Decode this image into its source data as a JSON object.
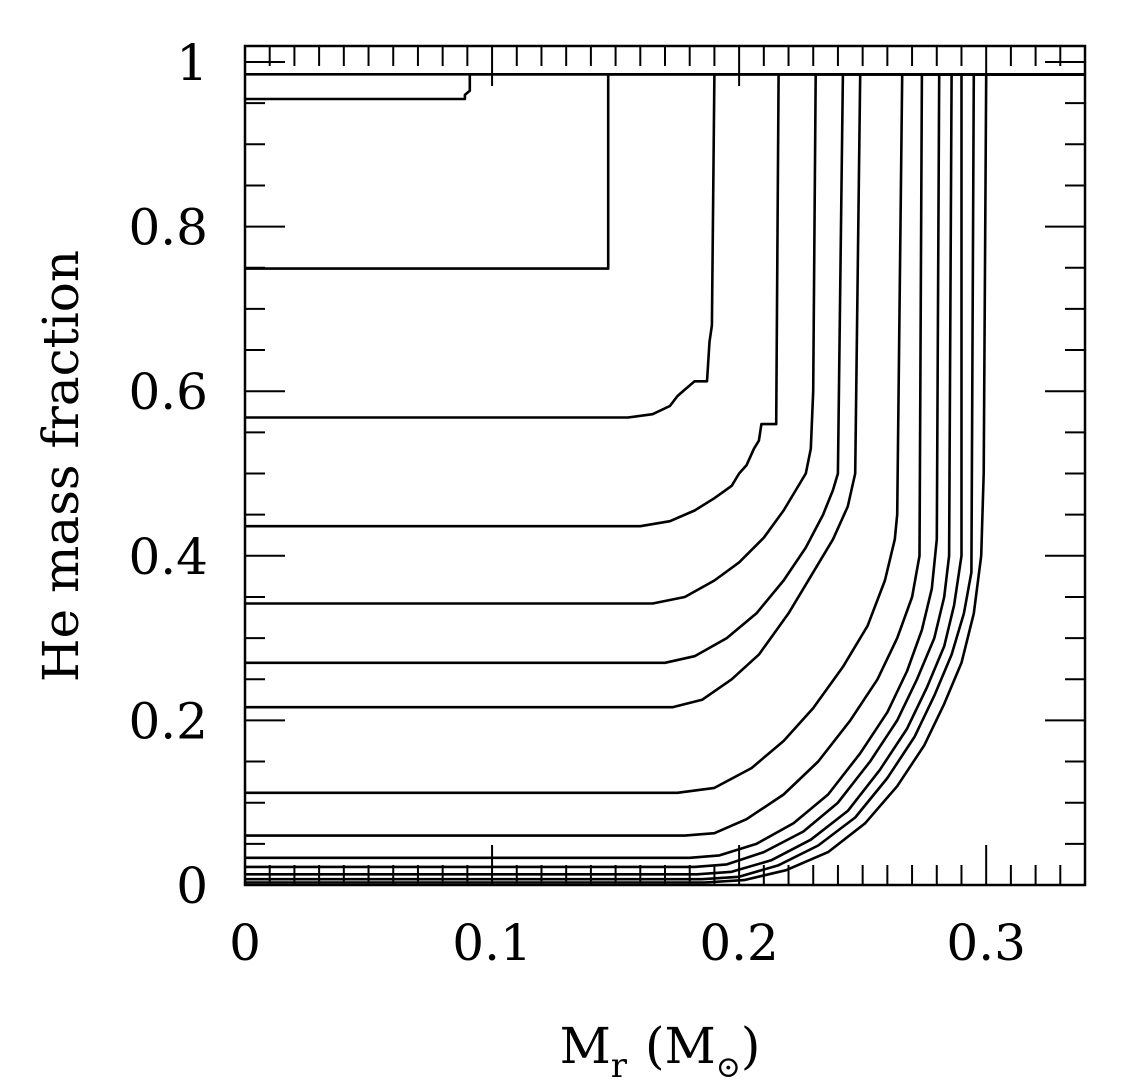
{
  "chart_data": {
    "type": "line",
    "xlabel_main": "M",
    "xlabel_sub": "r",
    "xlabel_unit_open": "(M",
    "xlabel_unit_symbol": "⊙",
    "xlabel_unit_close": ")",
    "ylabel": "He mass fraction",
    "xlim": [
      0,
      0.34
    ],
    "ylim": [
      0,
      1
    ],
    "x_ticks": [
      {
        "value": 0,
        "label": "0"
      },
      {
        "value": 0.1,
        "label": "0.1"
      },
      {
        "value": 0.2,
        "label": "0.2"
      },
      {
        "value": 0.3,
        "label": "0.3"
      }
    ],
    "y_ticks": [
      {
        "value": 0,
        "label": "0"
      },
      {
        "value": 0.2,
        "label": "0.2"
      },
      {
        "value": 0.4,
        "label": "0.4"
      },
      {
        "value": 0.6,
        "label": "0.6"
      },
      {
        "value": 0.8,
        "label": "0.8"
      },
      {
        "value": 1,
        "label": "1"
      }
    ],
    "x_minor_step": 0.01,
    "y_minor_step": 0.05,
    "grid": false,
    "legend": "none",
    "surface_He": 0.985,
    "series": [
      {
        "points": [
          [
            0,
            0.955
          ],
          [
            0.089,
            0.955
          ],
          [
            0.089,
            0.96
          ],
          [
            0.091,
            0.965
          ],
          [
            0.091,
            0.985
          ],
          [
            0.34,
            0.985
          ]
        ]
      },
      {
        "points": [
          [
            0,
            0.749
          ],
          [
            0.147,
            0.749
          ],
          [
            0.147,
            0.985
          ],
          [
            0.34,
            0.985
          ]
        ]
      },
      {
        "points": [
          [
            0,
            0.568
          ],
          [
            0.155,
            0.568
          ],
          [
            0.165,
            0.572
          ],
          [
            0.172,
            0.582
          ],
          [
            0.175,
            0.594
          ],
          [
            0.178,
            0.602
          ],
          [
            0.182,
            0.612
          ],
          [
            0.187,
            0.612
          ],
          [
            0.188,
            0.66
          ],
          [
            0.189,
            0.68
          ],
          [
            0.19,
            0.985
          ],
          [
            0.34,
            0.985
          ]
        ]
      },
      {
        "points": [
          [
            0,
            0.436
          ],
          [
            0.16,
            0.436
          ],
          [
            0.172,
            0.442
          ],
          [
            0.182,
            0.455
          ],
          [
            0.19,
            0.47
          ],
          [
            0.197,
            0.485
          ],
          [
            0.2,
            0.5
          ],
          [
            0.203,
            0.51
          ],
          [
            0.206,
            0.53
          ],
          [
            0.208,
            0.54
          ],
          [
            0.209,
            0.56
          ],
          [
            0.215,
            0.56
          ],
          [
            0.216,
            0.985
          ],
          [
            0.34,
            0.985
          ]
        ]
      },
      {
        "points": [
          [
            0,
            0.342
          ],
          [
            0.165,
            0.342
          ],
          [
            0.178,
            0.35
          ],
          [
            0.19,
            0.37
          ],
          [
            0.2,
            0.392
          ],
          [
            0.21,
            0.422
          ],
          [
            0.218,
            0.455
          ],
          [
            0.223,
            0.48
          ],
          [
            0.227,
            0.5
          ],
          [
            0.229,
            0.53
          ],
          [
            0.23,
            0.6
          ],
          [
            0.231,
            0.985
          ],
          [
            0.34,
            0.985
          ]
        ]
      },
      {
        "points": [
          [
            0,
            0.27
          ],
          [
            0.17,
            0.27
          ],
          [
            0.182,
            0.278
          ],
          [
            0.195,
            0.3
          ],
          [
            0.207,
            0.33
          ],
          [
            0.218,
            0.37
          ],
          [
            0.227,
            0.41
          ],
          [
            0.234,
            0.45
          ],
          [
            0.238,
            0.48
          ],
          [
            0.24,
            0.5
          ],
          [
            0.242,
            0.985
          ],
          [
            0.34,
            0.985
          ]
        ]
      },
      {
        "points": [
          [
            0,
            0.216
          ],
          [
            0.173,
            0.216
          ],
          [
            0.185,
            0.225
          ],
          [
            0.197,
            0.25
          ],
          [
            0.208,
            0.28
          ],
          [
            0.22,
            0.33
          ],
          [
            0.23,
            0.38
          ],
          [
            0.238,
            0.42
          ],
          [
            0.244,
            0.46
          ],
          [
            0.247,
            0.5
          ],
          [
            0.249,
            0.985
          ],
          [
            0.34,
            0.985
          ]
        ]
      },
      {
        "points": [
          [
            0,
            0.112
          ],
          [
            0.175,
            0.112
          ],
          [
            0.19,
            0.118
          ],
          [
            0.205,
            0.142
          ],
          [
            0.218,
            0.175
          ],
          [
            0.23,
            0.215
          ],
          [
            0.242,
            0.265
          ],
          [
            0.252,
            0.315
          ],
          [
            0.259,
            0.37
          ],
          [
            0.263,
            0.42
          ],
          [
            0.264,
            0.45
          ],
          [
            0.266,
            0.985
          ],
          [
            0.34,
            0.985
          ]
        ]
      },
      {
        "points": [
          [
            0,
            0.06
          ],
          [
            0.178,
            0.06
          ],
          [
            0.19,
            0.063
          ],
          [
            0.203,
            0.08
          ],
          [
            0.218,
            0.11
          ],
          [
            0.232,
            0.15
          ],
          [
            0.245,
            0.2
          ],
          [
            0.256,
            0.25
          ],
          [
            0.264,
            0.3
          ],
          [
            0.27,
            0.35
          ],
          [
            0.273,
            0.4
          ],
          [
            0.274,
            0.985
          ],
          [
            0.34,
            0.985
          ]
        ]
      },
      {
        "points": [
          [
            0,
            0.033
          ],
          [
            0.18,
            0.033
          ],
          [
            0.192,
            0.036
          ],
          [
            0.207,
            0.05
          ],
          [
            0.222,
            0.075
          ],
          [
            0.236,
            0.11
          ],
          [
            0.249,
            0.16
          ],
          [
            0.26,
            0.21
          ],
          [
            0.268,
            0.26
          ],
          [
            0.274,
            0.31
          ],
          [
            0.278,
            0.36
          ],
          [
            0.28,
            0.42
          ],
          [
            0.281,
            0.985
          ],
          [
            0.34,
            0.985
          ]
        ]
      },
      {
        "points": [
          [
            0,
            0.022
          ],
          [
            0.182,
            0.022
          ],
          [
            0.195,
            0.025
          ],
          [
            0.21,
            0.04
          ],
          [
            0.226,
            0.065
          ],
          [
            0.24,
            0.1
          ],
          [
            0.253,
            0.15
          ],
          [
            0.264,
            0.2
          ],
          [
            0.272,
            0.25
          ],
          [
            0.279,
            0.3
          ],
          [
            0.283,
            0.35
          ],
          [
            0.285,
            0.4
          ],
          [
            0.286,
            0.985
          ],
          [
            0.34,
            0.985
          ]
        ]
      },
      {
        "points": [
          [
            0,
            0.013
          ],
          [
            0.183,
            0.013
          ],
          [
            0.197,
            0.016
          ],
          [
            0.213,
            0.03
          ],
          [
            0.229,
            0.055
          ],
          [
            0.244,
            0.09
          ],
          [
            0.257,
            0.14
          ],
          [
            0.268,
            0.19
          ],
          [
            0.276,
            0.24
          ],
          [
            0.283,
            0.29
          ],
          [
            0.287,
            0.34
          ],
          [
            0.29,
            0.4
          ],
          [
            0.29,
            0.985
          ],
          [
            0.34,
            0.985
          ]
        ]
      },
      {
        "points": [
          [
            0,
            0.007
          ],
          [
            0.185,
            0.007
          ],
          [
            0.2,
            0.01
          ],
          [
            0.216,
            0.024
          ],
          [
            0.232,
            0.048
          ],
          [
            0.247,
            0.082
          ],
          [
            0.26,
            0.13
          ],
          [
            0.271,
            0.18
          ],
          [
            0.279,
            0.23
          ],
          [
            0.286,
            0.28
          ],
          [
            0.291,
            0.33
          ],
          [
            0.294,
            0.38
          ],
          [
            0.295,
            0.985
          ],
          [
            0.34,
            0.985
          ]
        ]
      },
      {
        "points": [
          [
            0,
            0.003
          ],
          [
            0.186,
            0.003
          ],
          [
            0.202,
            0.006
          ],
          [
            0.219,
            0.018
          ],
          [
            0.236,
            0.04
          ],
          [
            0.251,
            0.075
          ],
          [
            0.264,
            0.12
          ],
          [
            0.275,
            0.17
          ],
          [
            0.283,
            0.22
          ],
          [
            0.29,
            0.27
          ],
          [
            0.295,
            0.33
          ],
          [
            0.298,
            0.4
          ],
          [
            0.299,
            0.5
          ],
          [
            0.3,
            0.985
          ],
          [
            0.34,
            0.985
          ]
        ]
      }
    ]
  }
}
